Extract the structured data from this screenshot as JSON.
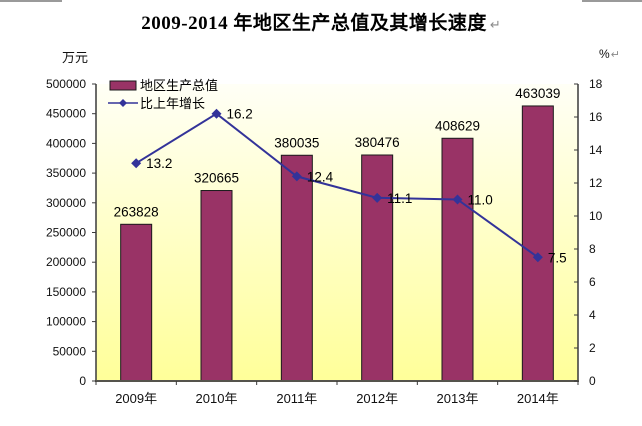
{
  "page": {
    "title": "2009-2014 年地区生产总值及其增长速度",
    "paragraph_mark": "↵"
  },
  "chart_data": {
    "type": "bar+line",
    "title": "2009-2014 年地区生产总值及其增长速度",
    "categories": [
      "2009年",
      "2010年",
      "2011年",
      "2012年",
      "2013年",
      "2014年"
    ],
    "series": [
      {
        "name": "地区生产总值",
        "type": "bar",
        "axis": "left",
        "color": "#993366",
        "border_color": "#1a1a1a",
        "values": [
          263828,
          320665,
          380035,
          380476,
          408629,
          463039
        ],
        "labels": [
          "263828",
          "320665",
          "380035",
          "380476",
          "408629",
          "463039"
        ]
      },
      {
        "name": "比上年增长",
        "type": "line",
        "axis": "right",
        "color": "#333399",
        "values": [
          13.2,
          16.2,
          12.4,
          11.1,
          11.0,
          7.5
        ],
        "labels": [
          "13.2",
          "16.2",
          "12.4",
          "11.1",
          "11.0",
          "7.5"
        ]
      }
    ],
    "left_axis": {
      "label": "万元",
      "min": 0,
      "max": 500000,
      "step": 50000
    },
    "right_axis": {
      "label": "%",
      "min": 0,
      "max": 18,
      "step": 2
    },
    "legend_position": "top-left-inside",
    "grid": false,
    "plot_background_top": "#fffff6",
    "plot_background_bottom": "#ffff99",
    "axis_color": "#3a3a3a"
  }
}
